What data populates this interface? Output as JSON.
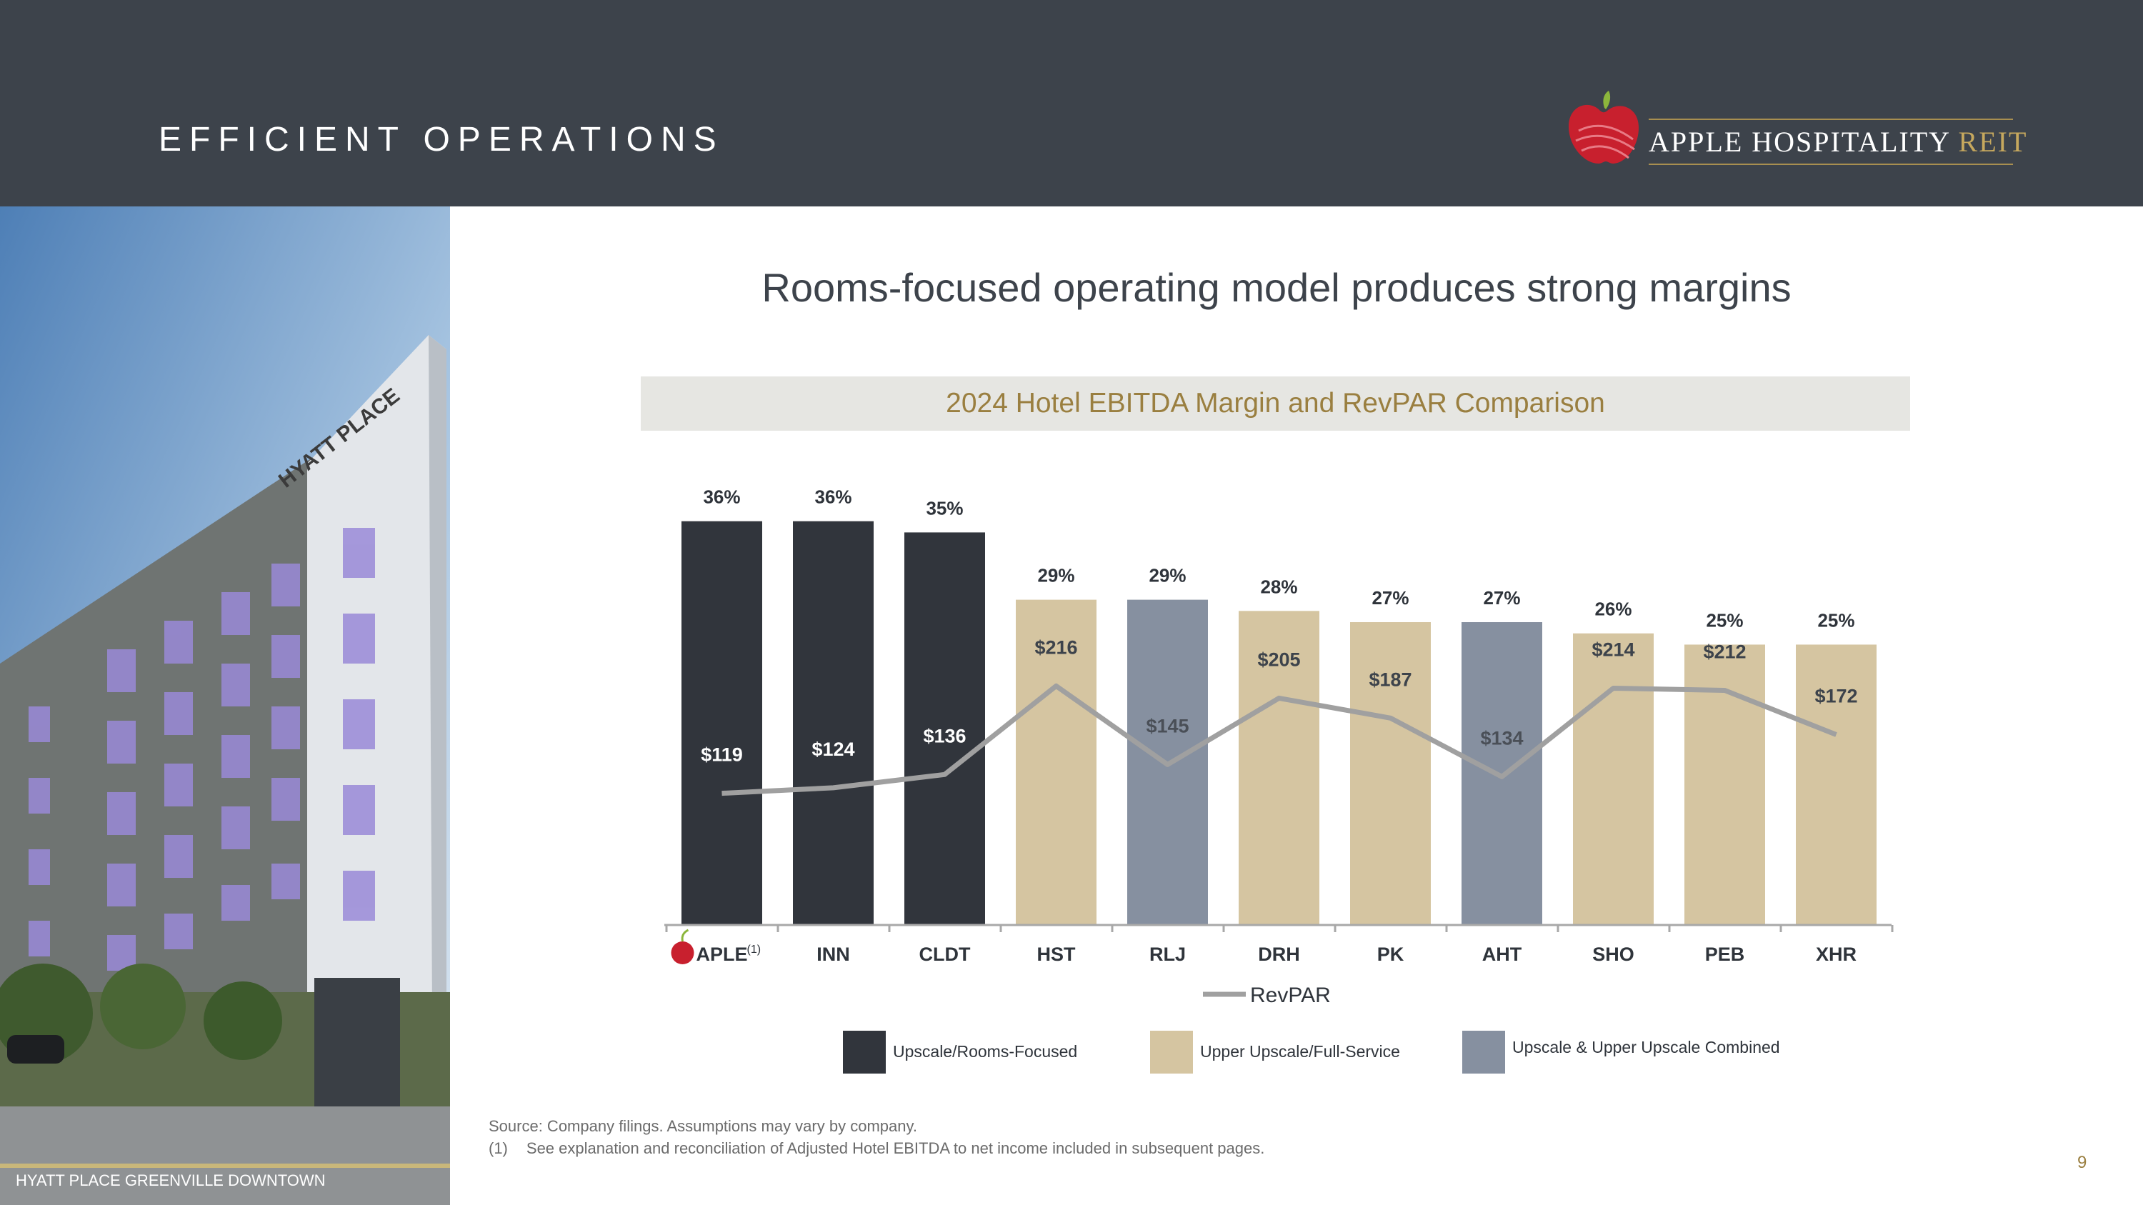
{
  "header": {
    "title": "EFFICIENT OPERATIONS"
  },
  "logo": {
    "name_main": "APPLE HOSPITALITY",
    "name_accent": "REIT"
  },
  "photo": {
    "caption": "HYATT PLACE GREENVILLE DOWNTOWN",
    "sign_text": "HYATT PLACE"
  },
  "slide": {
    "title": "Rooms-focused operating model produces strong margins",
    "page_number": "9"
  },
  "legend": {
    "items": [
      {
        "label": "Upscale/Rooms-Focused",
        "color": "#31353c"
      },
      {
        "label": "Upper Upscale/Full-Service",
        "color": "#d5c5a1"
      },
      {
        "label": "Upscale & Upper Upscale Combined",
        "color": "#8690a0"
      }
    ]
  },
  "footnotes": {
    "source": "Source: Company filings. Assumptions may vary by company.",
    "note_1_marker": "(1)",
    "note_1_text": "See explanation and reconciliation of Adjusted Hotel EBITDA to net income included in subsequent pages."
  },
  "chart_data": {
    "type": "bar",
    "title": "2024 Hotel EBITDA Margin and RevPAR Comparison",
    "categories": [
      "APLE",
      "INN",
      "CLDT",
      "HST",
      "RLJ",
      "DRH",
      "PK",
      "AHT",
      "SHO",
      "PEB",
      "XHR"
    ],
    "first_category_superscript": "(1)",
    "segments": [
      "rooms",
      "rooms",
      "rooms",
      "full",
      "combined",
      "full",
      "full",
      "combined",
      "full",
      "full",
      "full"
    ],
    "series": [
      {
        "name": "EBITDA Margin",
        "kind": "bar",
        "values": [
          36,
          36,
          35,
          29,
          29,
          28,
          27,
          27,
          26,
          25,
          25
        ],
        "labels": [
          "36%",
          "36%",
          "35%",
          "29%",
          "29%",
          "28%",
          "27%",
          "27%",
          "26%",
          "25%",
          "25%"
        ]
      },
      {
        "name": "RevPAR",
        "kind": "line",
        "values": [
          119,
          124,
          136,
          216,
          145,
          205,
          187,
          134,
          214,
          212,
          172
        ],
        "labels": [
          "$119",
          "$124",
          "$136",
          "$216",
          "$145",
          "$205",
          "$187",
          "$134",
          "$214",
          "$212",
          "$172"
        ],
        "color": "#a0a0a0"
      }
    ],
    "colors": {
      "rooms": "#31353c",
      "full": "#d5c5a1",
      "combined": "#8690a0"
    },
    "ylim_margin": [
      0,
      37
    ],
    "ylim_revpar": [
      0,
      375
    ],
    "legend_line_label": "RevPAR",
    "legend_position": "bottom"
  }
}
